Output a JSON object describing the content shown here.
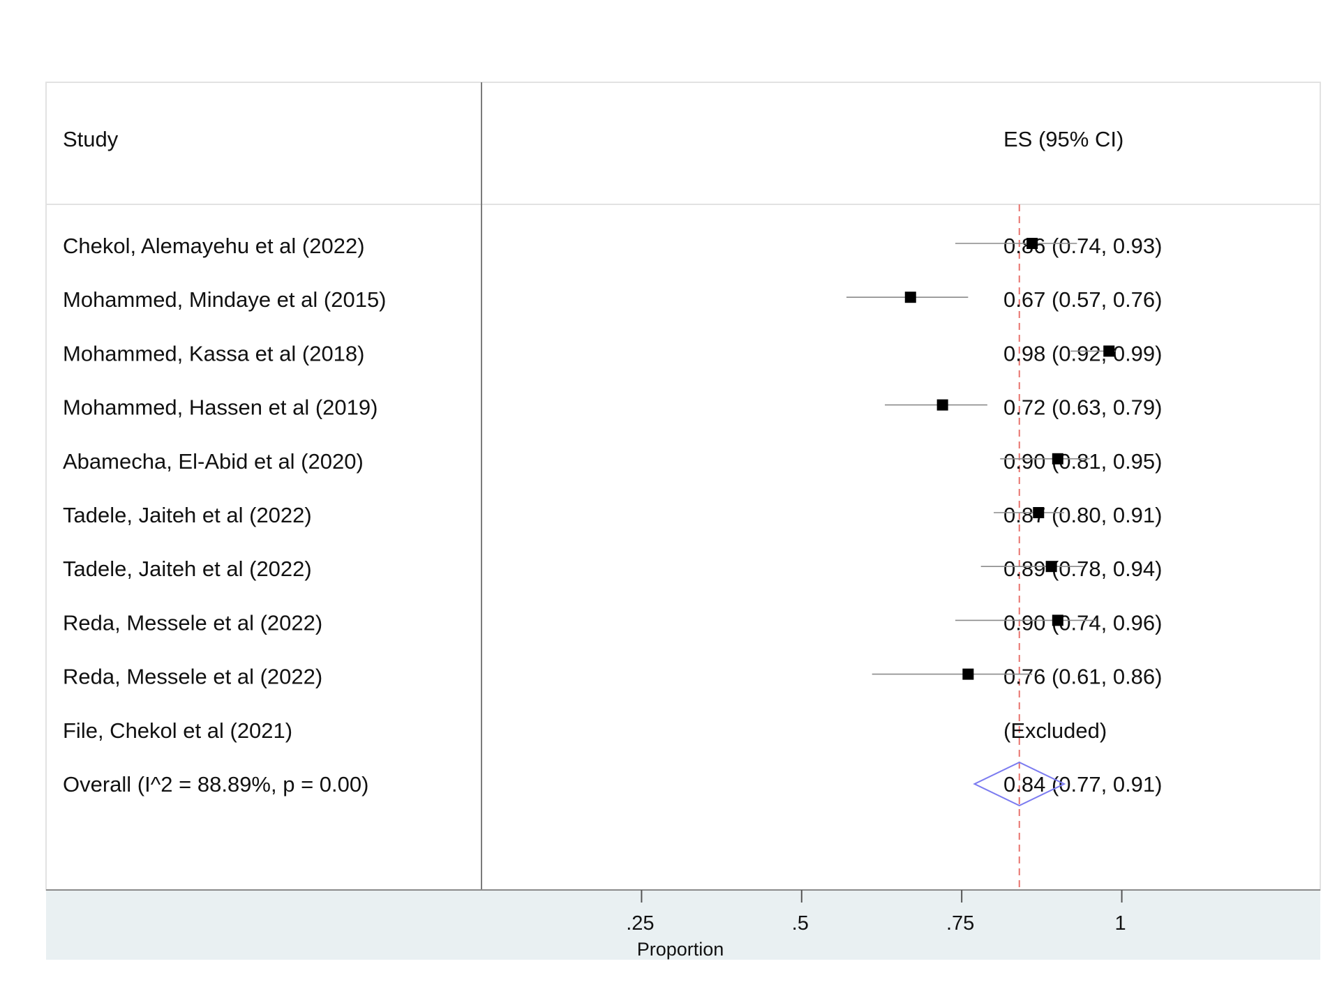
{
  "chart_data": {
    "type": "forest",
    "header": {
      "study": "Study",
      "estimate": "ES (95% CI)"
    },
    "xlabel": "Proportion",
    "ticks": [
      0.25,
      0.5,
      0.75,
      1
    ],
    "tick_labels": [
      ".25",
      ".5",
      ".75",
      "1"
    ],
    "xlim": [
      0,
      1.31
    ],
    "reference_line": 0.84,
    "studies": [
      {
        "label": "Chekol, Alemayehu et al  (2022)",
        "es": 0.86,
        "lo": 0.74,
        "hi": 0.93,
        "text": "0.86 (0.74, 0.93)"
      },
      {
        "label": "Mohammed, Mindaye et al (2015)",
        "es": 0.67,
        "lo": 0.57,
        "hi": 0.76,
        "text": "0.67 (0.57, 0.76)"
      },
      {
        "label": "Mohammed, Kassa et al (2018)",
        "es": 0.98,
        "lo": 0.92,
        "hi": 0.99,
        "text": "0.98 (0.92, 0.99)"
      },
      {
        "label": "Mohammed, Hassen et al (2019)",
        "es": 0.72,
        "lo": 0.63,
        "hi": 0.79,
        "text": "0.72 (0.63, 0.79)"
      },
      {
        "label": "Abamecha, El-Abid et al (2020)",
        "es": 0.9,
        "lo": 0.81,
        "hi": 0.95,
        "text": "0.90 (0.81, 0.95)"
      },
      {
        "label": "Tadele, Jaiteh et al (2022)",
        "es": 0.87,
        "lo": 0.8,
        "hi": 0.91,
        "text": "0.87 (0.80, 0.91)"
      },
      {
        "label": "Tadele, Jaiteh et al (2022)",
        "es": 0.89,
        "lo": 0.78,
        "hi": 0.94,
        "text": "0.89 (0.78, 0.94)"
      },
      {
        "label": "Reda, Messele et al (2022)",
        "es": 0.9,
        "lo": 0.74,
        "hi": 0.96,
        "text": "0.90 (0.74, 0.96)"
      },
      {
        "label": "Reda, Messele et al (2022)",
        "es": 0.76,
        "lo": 0.61,
        "hi": 0.86,
        "text": "0.76 (0.61, 0.86)"
      },
      {
        "label": "File, Chekol et al (2021)",
        "es": null,
        "lo": null,
        "hi": null,
        "text": "(Excluded)"
      }
    ],
    "overall": {
      "label": "Overall (I^2 = 88.89%, p = 0.00)",
      "es": 0.84,
      "lo": 0.77,
      "hi": 0.91,
      "text": "0.84 (0.77, 0.91)"
    },
    "colors": {
      "marker": "#000000",
      "ci_line": "#8a8a8a",
      "reference_line": "#e8736e",
      "overall_diamond": "#7b7bf0",
      "axis_band": "#e9f0f2",
      "frame": "#c9c9c9"
    }
  }
}
